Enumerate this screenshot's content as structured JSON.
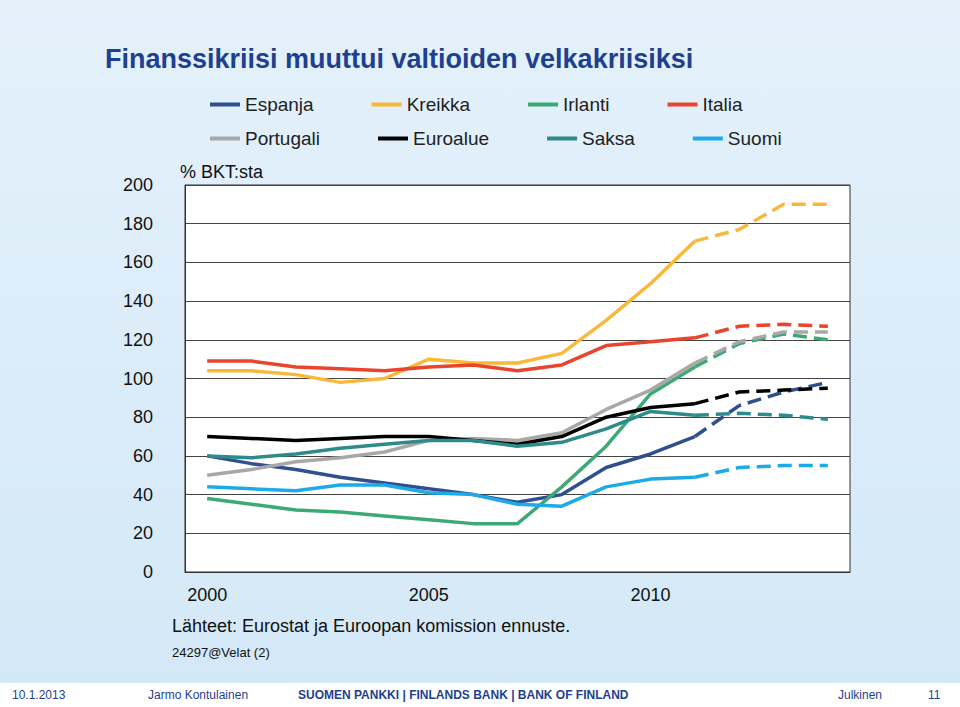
{
  "chart_data": {
    "type": "line",
    "title": "Finanssikriisi muuttui valtioiden velkakriisiksi",
    "y_label": "% BKT:sta",
    "source": "Lähteet: Eurostat ja Euroopan komission ennuste.",
    "code": "24297@Velat (2)",
    "footer": {
      "date": "10.1.2013",
      "author": "Jarmo Kontulainen",
      "org": "SUOMEN PANKKI | FINLANDS BANK | BANK OF FINLAND",
      "class": "Julkinen",
      "page": "11"
    },
    "x": [
      "2000",
      null,
      null,
      null,
      null,
      "2005",
      null,
      null,
      null,
      null,
      "2010",
      null,
      null,
      null,
      null
    ],
    "ylim": [
      0,
      200
    ],
    "yticks": [
      0,
      20,
      40,
      60,
      80,
      100,
      120,
      140,
      160,
      180,
      200
    ],
    "grid": true,
    "legend": "top",
    "series": [
      {
        "name": "Espanja",
        "color": "#2f4f8f",
        "values": [
          60,
          56,
          53,
          49,
          46,
          43,
          40,
          36,
          40,
          54,
          61,
          70,
          null,
          null,
          null
        ]
      },
      {
        "name": "Kreikka",
        "color": "#f8b93b",
        "values": [
          104,
          104,
          102,
          98,
          100,
          110,
          108,
          108,
          113,
          130,
          149,
          171,
          null,
          null,
          null
        ]
      },
      {
        "name": "Irlanti",
        "color": "#3daa76",
        "values": [
          38,
          35,
          32,
          31,
          29,
          27,
          25,
          25,
          44,
          65,
          92,
          106,
          null,
          null,
          null
        ]
      },
      {
        "name": "Italia",
        "color": "#e8452c",
        "values": [
          109,
          109,
          106,
          105,
          104,
          106,
          107,
          104,
          107,
          117,
          119,
          121,
          null,
          null,
          null
        ]
      },
      {
        "name": "Portugali",
        "color": "#a8a8a8",
        "values": [
          50,
          53,
          57,
          59,
          62,
          68,
          69,
          68,
          72,
          84,
          94,
          108,
          null,
          null,
          null
        ]
      },
      {
        "name": "Euroalue",
        "color": "#000000",
        "values": [
          70,
          69,
          68,
          69,
          70,
          70,
          68,
          66,
          70,
          80,
          85,
          87,
          null,
          null,
          null
        ]
      },
      {
        "name": "Saksa",
        "color": "#2e8b8b",
        "values": [
          60,
          59,
          61,
          64,
          66,
          68,
          68,
          65,
          67,
          74,
          83,
          81,
          null,
          null,
          null
        ]
      },
      {
        "name": "Suomi",
        "color": "#1eaae6",
        "values": [
          44,
          43,
          42,
          45,
          45,
          41,
          40,
          35,
          34,
          44,
          48,
          49,
          null,
          null,
          null
        ]
      },
      {
        "name": "Espanja",
        "color": "#2f4f8f",
        "line_style": "dashed",
        "values": [
          null,
          null,
          null,
          null,
          null,
          null,
          null,
          null,
          null,
          null,
          null,
          70,
          86,
          93,
          98
        ]
      },
      {
        "name": "Kreikka",
        "color": "#f8b93b",
        "line_style": "dashed",
        "values": [
          null,
          null,
          null,
          null,
          null,
          null,
          null,
          null,
          null,
          null,
          null,
          171,
          177,
          190,
          190
        ]
      },
      {
        "name": "Irlanti",
        "color": "#3daa76",
        "line_style": "dashed",
        "values": [
          null,
          null,
          null,
          null,
          null,
          null,
          null,
          null,
          null,
          null,
          null,
          106,
          118,
          123,
          120
        ]
      },
      {
        "name": "Italia",
        "color": "#e8452c",
        "line_style": "dashed",
        "values": [
          null,
          null,
          null,
          null,
          null,
          null,
          null,
          null,
          null,
          null,
          null,
          121,
          127,
          128,
          127
        ]
      },
      {
        "name": "Portugali",
        "color": "#a8a8a8",
        "line_style": "dashed",
        "values": [
          null,
          null,
          null,
          null,
          null,
          null,
          null,
          null,
          null,
          null,
          null,
          108,
          119,
          124,
          124
        ]
      },
      {
        "name": "Euroalue",
        "color": "#000000",
        "line_style": "dashed",
        "values": [
          null,
          null,
          null,
          null,
          null,
          null,
          null,
          null,
          null,
          null,
          null,
          87,
          93,
          94,
          95
        ]
      },
      {
        "name": "Saksa",
        "color": "#2e8b8b",
        "line_style": "dashed",
        "values": [
          null,
          null,
          null,
          null,
          null,
          null,
          null,
          null,
          null,
          null,
          null,
          81,
          82,
          81,
          79
        ]
      },
      {
        "name": "Suomi",
        "color": "#1eaae6",
        "line_style": "dashed",
        "values": [
          null,
          null,
          null,
          null,
          null,
          null,
          null,
          null,
          null,
          null,
          null,
          49,
          54,
          55,
          55
        ]
      }
    ]
  }
}
